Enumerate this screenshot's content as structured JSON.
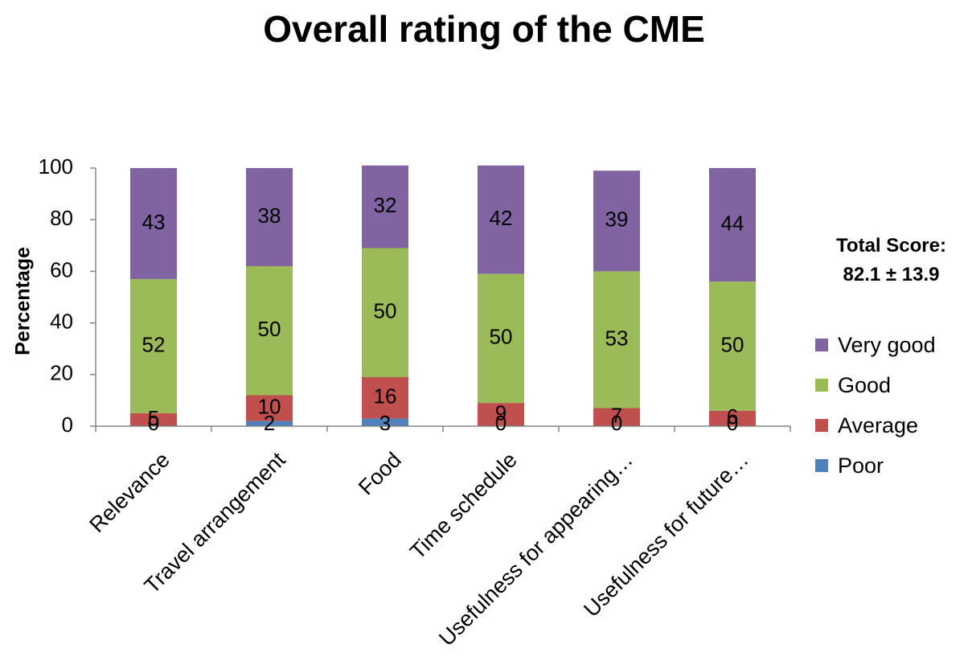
{
  "chart_data": {
    "type": "bar",
    "stacked": true,
    "title": "Overall rating of the CME",
    "xlabel": "",
    "ylabel": "Percentage",
    "ylim": [
      0,
      100
    ],
    "yticks": [
      0,
      20,
      40,
      60,
      80,
      100
    ],
    "grid": false,
    "legend_position": "right",
    "categories": [
      "Relevance",
      "Travel arrangement",
      "Food",
      "Time schedule",
      "Usefulness for appearing…",
      "Usefulness for future…"
    ],
    "series": [
      {
        "name": "Poor",
        "color": "#4F81BD",
        "values": [
          0,
          2,
          3,
          0,
          0,
          0
        ]
      },
      {
        "name": "Average",
        "color": "#C0504D",
        "values": [
          5,
          10,
          16,
          9,
          7,
          6
        ]
      },
      {
        "name": "Good",
        "color": "#9BBB59",
        "values": [
          52,
          50,
          50,
          50,
          53,
          50
        ]
      },
      {
        "name": "Very good",
        "color": "#8064A2",
        "values": [
          43,
          38,
          32,
          42,
          39,
          44
        ]
      }
    ],
    "legend_order": [
      "Very good",
      "Good",
      "Average",
      "Poor"
    ],
    "annotation": {
      "line1": "Total Score:",
      "line2": "82.1 ± 13.9"
    }
  }
}
